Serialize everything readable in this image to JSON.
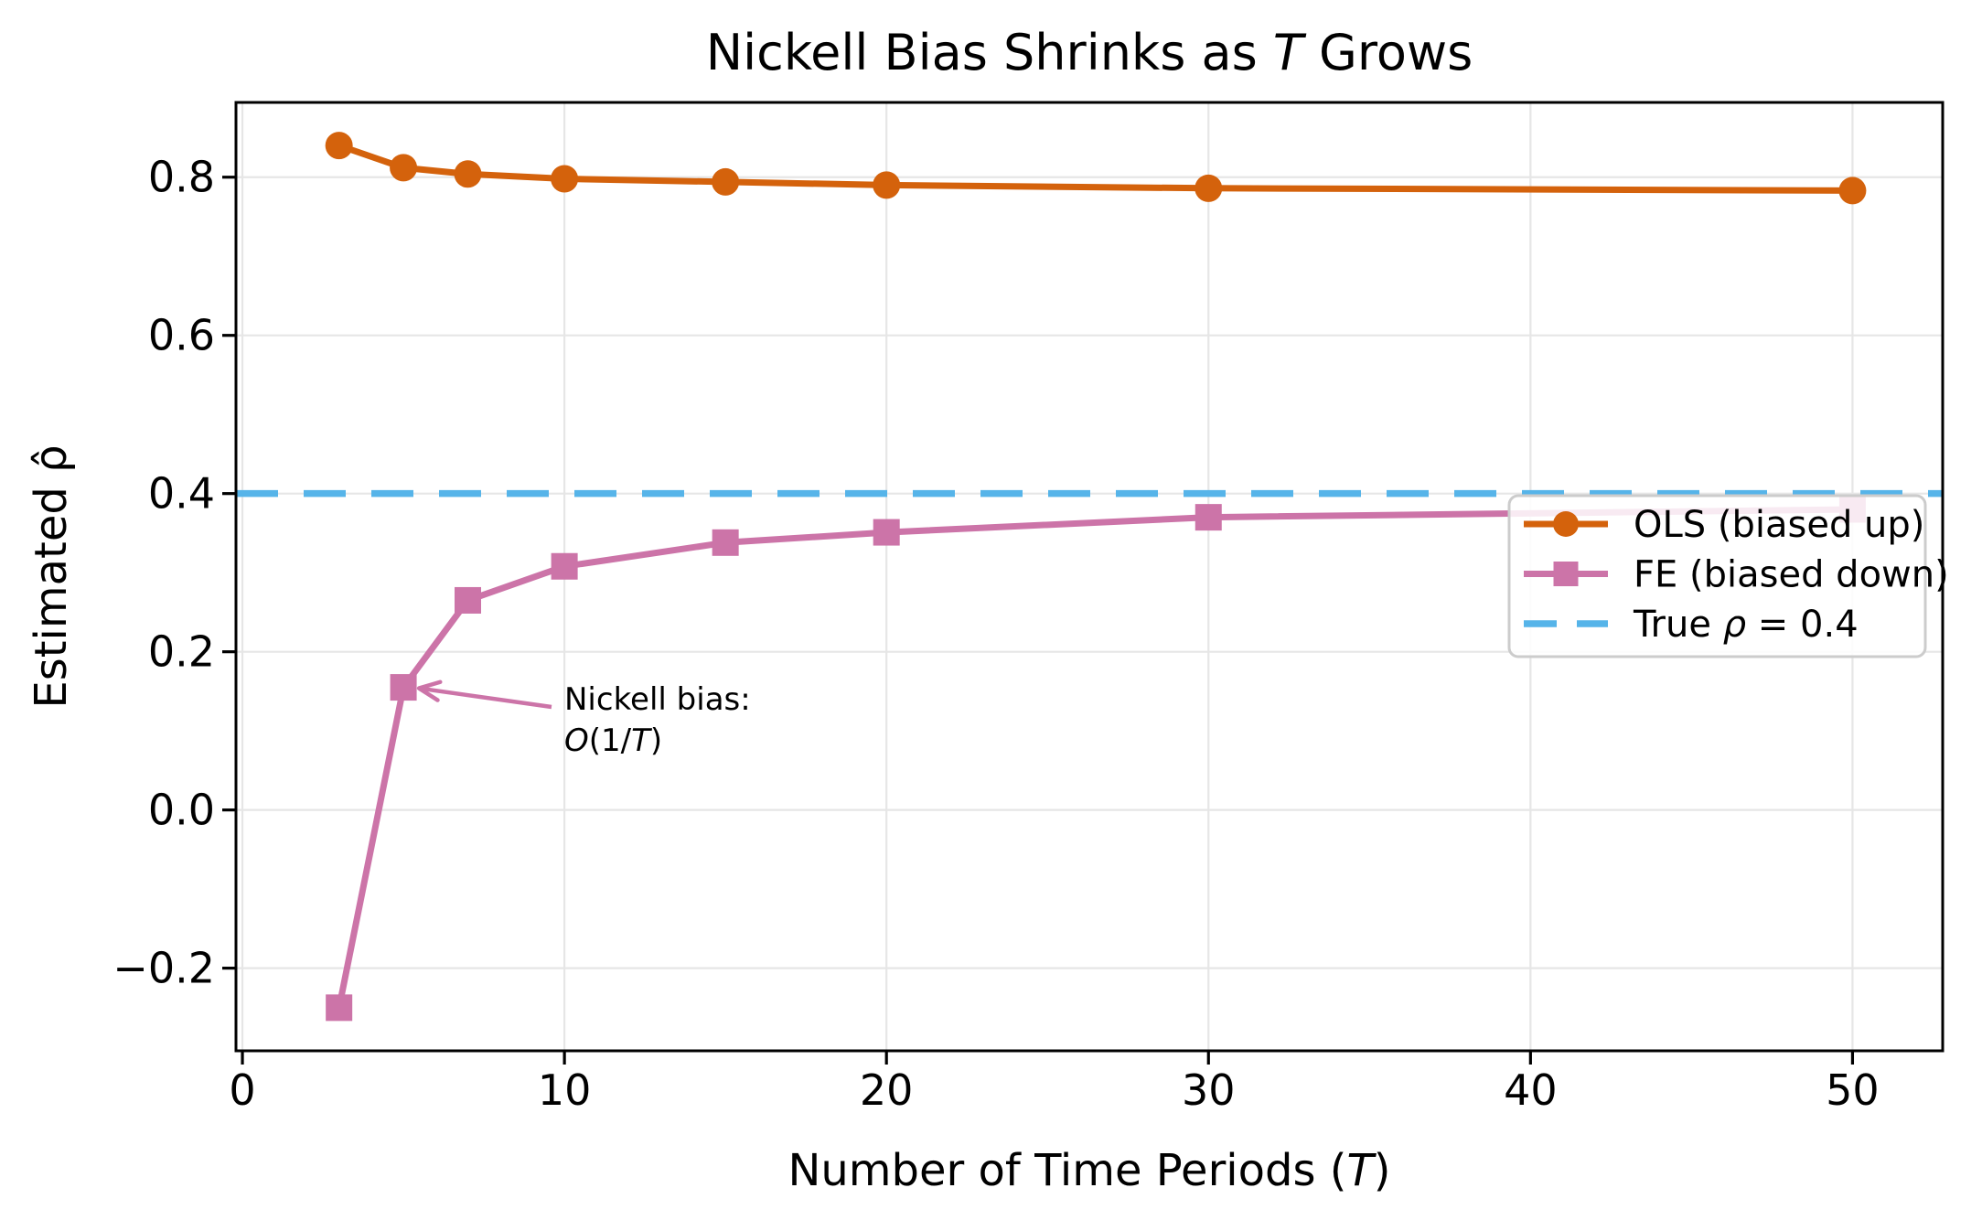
{
  "figure": {
    "background": "#ffffff",
    "text_color": "#000000",
    "grid_color": "#e6e6e6",
    "spine_color": "#000000",
    "legend_border_color": "#cccccc"
  },
  "chart_data": {
    "type": "line",
    "title": "Nickell Bias Shrinks as T Grows",
    "title_parts": [
      {
        "t": "Nickell Bias Shrinks as ",
        "i": false
      },
      {
        "t": "T",
        "i": true
      },
      {
        "t": " Grows",
        "i": false
      }
    ],
    "xlabel": "Number of Time Periods (T)",
    "xlabel_parts": [
      {
        "t": "Number of Time Periods (",
        "i": false
      },
      {
        "t": "T",
        "i": true
      },
      {
        "t": ")",
        "i": false
      }
    ],
    "ylabel": "Estimated ρ̂",
    "x": [
      3,
      5,
      7,
      10,
      15,
      20,
      30,
      50
    ],
    "series": [
      {
        "name": "OLS (biased up)",
        "marker": "circle",
        "color": "#d4620c",
        "values": [
          0.84,
          0.812,
          0.804,
          0.798,
          0.794,
          0.79,
          0.786,
          0.783
        ]
      },
      {
        "name": "FE (biased down)",
        "marker": "square",
        "color": "#cc74a8",
        "values": [
          -0.25,
          0.155,
          0.265,
          0.308,
          0.338,
          0.351,
          0.37,
          0.38
        ]
      }
    ],
    "reference_line": {
      "label": "True ρ = 0.4",
      "label_parts": [
        {
          "t": "True ",
          "i": false
        },
        {
          "t": "ρ",
          "i": true
        },
        {
          "t": " = 0.4",
          "i": false
        }
      ],
      "value": 0.4,
      "color": "#56b4e9",
      "style": "dashed"
    },
    "annotation": {
      "line1": "Nickell bias:",
      "line2": "O(1/T)",
      "line2_parts": [
        {
          "t": "O",
          "i": true
        },
        {
          "t": "(1/",
          "i": false
        },
        {
          "t": "T",
          "i": true
        },
        {
          "t": ")",
          "i": false
        }
      ],
      "color": "#cc74a8",
      "target_x": 5,
      "target_y": 0.155
    },
    "xticks": [
      0,
      10,
      20,
      30,
      40,
      50
    ],
    "yticks": [
      0.8,
      0.6,
      0.4,
      0.2,
      0.0,
      -0.2
    ],
    "xlim": [
      -0.2,
      52.8
    ],
    "ylim": [
      -0.3045,
      0.8945
    ],
    "grid": true,
    "legend_position": "right-middle"
  }
}
